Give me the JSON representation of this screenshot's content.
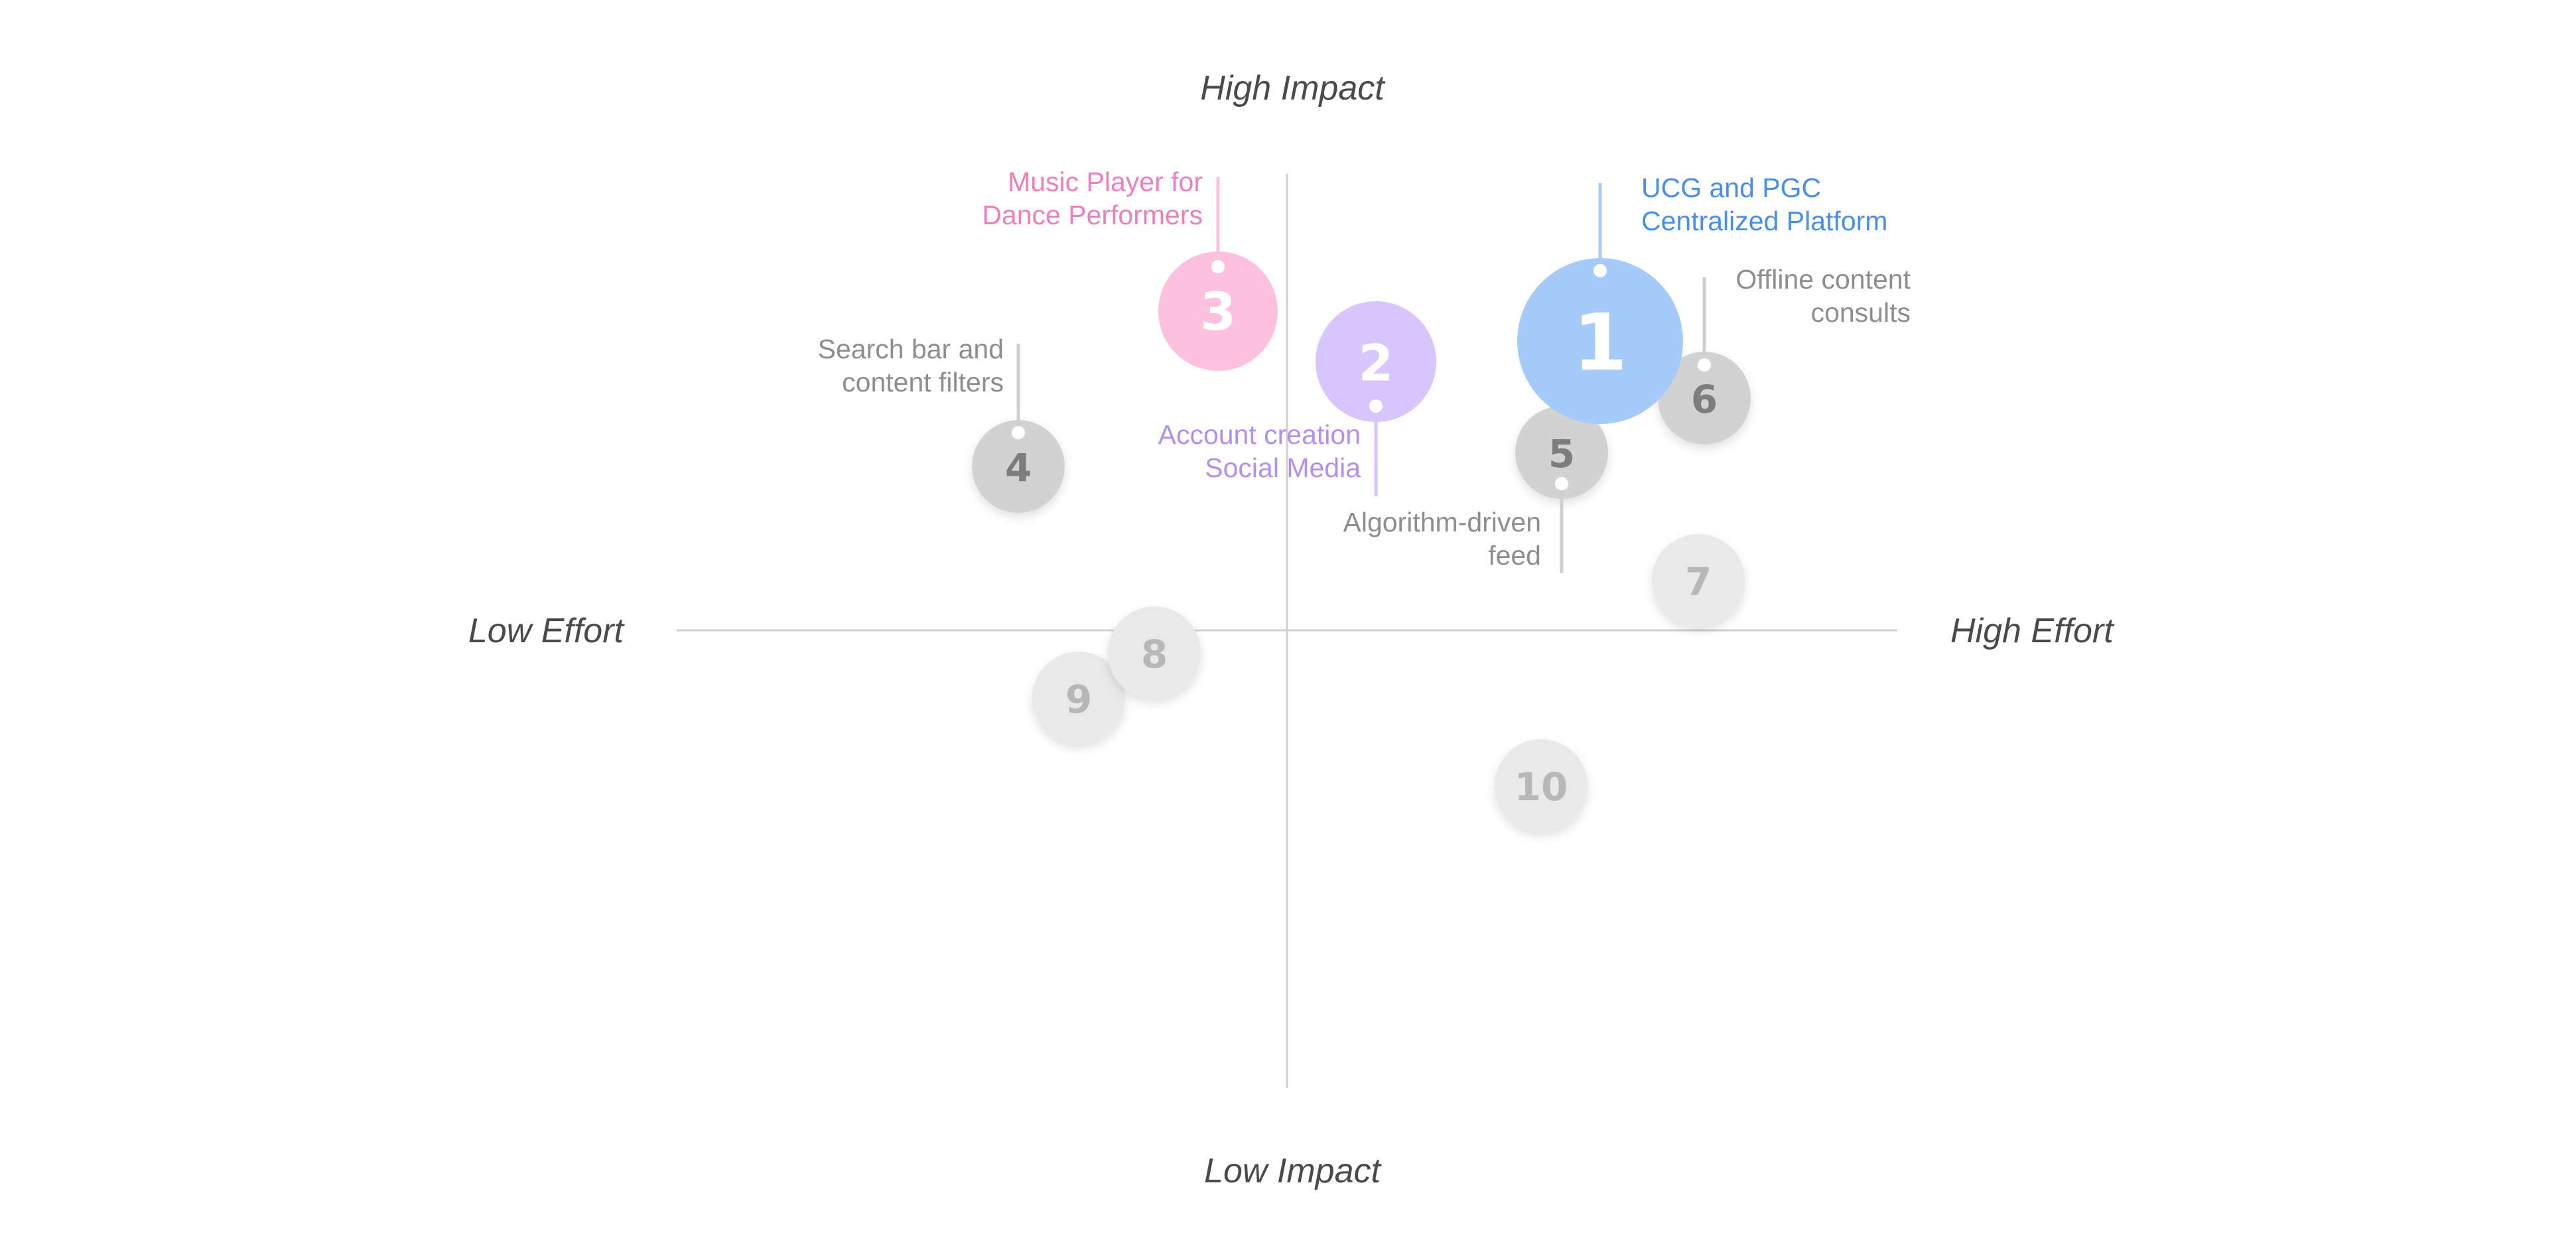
{
  "axes": {
    "top": "High Impact",
    "bottom": "Low Impact",
    "left": "Low Effort",
    "right": "High Effort"
  },
  "colors": {
    "axis": "#d0d0d0",
    "blue": "#4a8fe6",
    "blue_bubble": "#a6cbfa",
    "pink": "#ee7fbe",
    "pink_bubble": "#fdc1df",
    "purple": "#b38ff0",
    "purple_bubble": "#d7c5fb",
    "gray_text": "#8e8e8e",
    "gray_bubble": "#d2d2d2",
    "light_bubble": "#e9e9e9",
    "light_text": "#b8b8b8"
  },
  "features": [
    {
      "number": "1",
      "label_lines": [
        "UCG and PGC",
        "Centralized Platform"
      ],
      "color": "blue"
    },
    {
      "number": "2",
      "label_lines": [
        "Account creation",
        "Social Media"
      ],
      "color": "purple"
    },
    {
      "number": "3",
      "label_lines": [
        "Music Player for",
        "Dance Performers"
      ],
      "color": "pink"
    },
    {
      "number": "4",
      "label_lines": [
        "Search bar and",
        "content filters"
      ],
      "color": "gray"
    },
    {
      "number": "5",
      "label_lines": [
        "Algorithm-driven",
        "feed"
      ],
      "color": "gray"
    },
    {
      "number": "6",
      "label_lines": [
        "Offline content",
        "consults"
      ],
      "color": "gray"
    },
    {
      "number": "7",
      "label_lines": [],
      "color": "light"
    },
    {
      "number": "8",
      "label_lines": [],
      "color": "light"
    },
    {
      "number": "9",
      "label_lines": [],
      "color": "light"
    },
    {
      "number": "10",
      "label_lines": [],
      "color": "light"
    }
  ]
}
